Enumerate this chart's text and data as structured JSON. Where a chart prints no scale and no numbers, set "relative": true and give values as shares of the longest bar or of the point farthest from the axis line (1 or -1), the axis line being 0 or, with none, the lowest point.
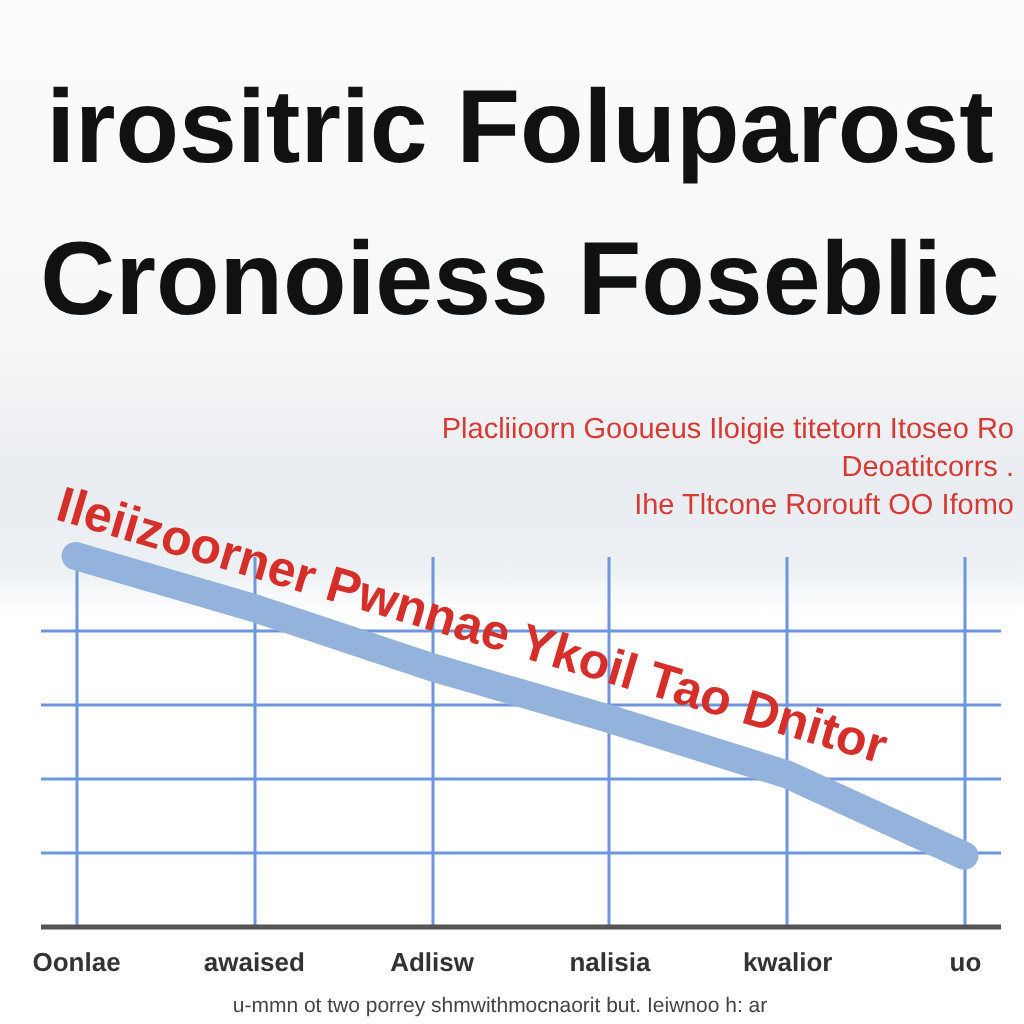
{
  "chart_data": {
    "type": "line",
    "title": "irositric Foluparost\nCronoiess Foseblic",
    "subtitle": "Placliioorn Gooueus Iloigie titetorn Itoseo Ro\nDeoatitcorrs .\nIhe Tltcone Rorouft OO Ifomo",
    "categories": [
      "Oonlae",
      "awaised",
      "Adlisw",
      "nalisia",
      "kwalior",
      "uo"
    ],
    "series": [
      {
        "name": "Ileiizoorner Pwnnae Ykoil Tao Dnitor",
        "color": "#93b3dd",
        "values": [
          1,
          0.86,
          0.7,
          0.56,
          0.41,
          0.19
        ]
      }
    ],
    "relative": true,
    "grid": true,
    "annotations": [
      "u-mmn ot two porrey shmwithmocnaorit but. Ieiwnoo h: ar"
    ]
  }
}
